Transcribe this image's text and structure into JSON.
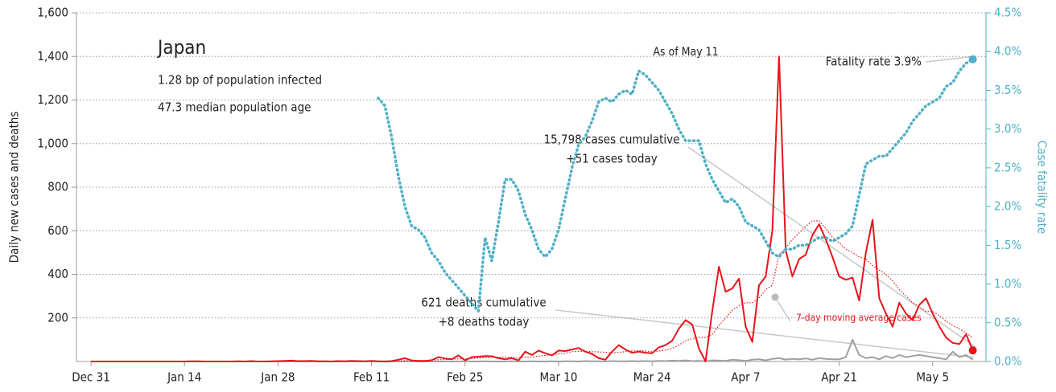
{
  "chart_data": {
    "type": "line",
    "title": "Japan",
    "subtitle": [
      "1.28 bp of population infected",
      "47.3 median population age"
    ],
    "ylabel": "Daily new cases and deaths",
    "y2label": "Case fatality rate",
    "annotations": {
      "as_of": "As of May 11",
      "fatality": "Fatality rate 3.9%",
      "cases_cum": "15,798 cases cumulative",
      "cases_today": "+51 cases today",
      "deaths_cum": "621 deaths cumulative",
      "deaths_today": "+8 deaths today"
    },
    "categories": [
      "Dec 31",
      null,
      null,
      null,
      null,
      null,
      null,
      null,
      null,
      null,
      null,
      null,
      null,
      null,
      "Jan 14",
      null,
      null,
      null,
      null,
      null,
      null,
      null,
      null,
      null,
      null,
      null,
      null,
      null,
      "Jan 28",
      null,
      null,
      null,
      null,
      null,
      null,
      null,
      null,
      null,
      null,
      null,
      null,
      null,
      "Feb 11",
      null,
      null,
      null,
      null,
      null,
      null,
      null,
      null,
      null,
      null,
      null,
      null,
      null,
      "Feb 25",
      null,
      null,
      null,
      null,
      null,
      null,
      null,
      null,
      null,
      null,
      null,
      null,
      null,
      "Mar 10",
      null,
      null,
      null,
      null,
      null,
      null,
      null,
      null,
      null,
      null,
      null,
      null,
      null,
      "Mar 24",
      null,
      null,
      null,
      null,
      null,
      null,
      null,
      null,
      null,
      null,
      null,
      null,
      null,
      "Apr 7",
      null,
      null,
      null,
      null,
      null,
      null,
      null,
      null,
      null,
      null,
      null,
      null,
      null,
      "Apr 21",
      null,
      null,
      null,
      null,
      null,
      null,
      null,
      null,
      null,
      null,
      null,
      null,
      null,
      "May 5",
      null,
      null,
      null,
      null,
      null,
      null
    ],
    "series": [
      {
        "color": "#e8141b",
        "values": [
          0,
          0,
          0,
          0,
          0,
          0,
          0,
          0,
          0,
          0,
          0,
          0,
          0,
          0,
          0,
          1,
          1,
          0,
          0,
          0,
          0,
          0,
          1,
          0,
          2,
          0,
          0,
          1,
          2,
          3,
          4,
          2,
          2,
          3,
          1,
          1,
          0,
          2,
          1,
          3,
          2,
          1,
          3,
          1,
          0,
          2,
          8,
          15,
          5,
          3,
          2,
          6,
          20,
          14,
          10,
          28,
          5,
          20,
          22,
          25,
          24,
          15,
          10,
          15,
          5,
          45,
          30,
          50,
          38,
          28,
          50,
          48,
          55,
          62,
          45,
          35,
          15,
          8,
          45,
          75,
          55,
          40,
          45,
          40,
          38,
          65,
          75,
          95,
          150,
          190,
          170,
          60,
          0,
          230,
          435,
          320,
          335,
          380,
          160,
          90,
          350,
          390,
          600,
          1400,
          510,
          390,
          470,
          490,
          580,
          630,
          560,
          480,
          390,
          375,
          385,
          280,
          500,
          650,
          290,
          220,
          160,
          270,
          220,
          190,
          260,
          290,
          220,
          160,
          110,
          85,
          80,
          125,
          51
        ]
      },
      {
        "name": "7-day moving average cases",
        "color": "#e8141b",
        "dash": true,
        "values": [
          0,
          0,
          0,
          0,
          0,
          0,
          0,
          0,
          0,
          0,
          0,
          0,
          0,
          0,
          0,
          0,
          0,
          0,
          0,
          0,
          0,
          0,
          0,
          0,
          0,
          0,
          0,
          1,
          1,
          1,
          2,
          2,
          2,
          2,
          2,
          2,
          2,
          2,
          2,
          2,
          2,
          2,
          2,
          2,
          2,
          2,
          3,
          4,
          5,
          5,
          5,
          6,
          8,
          9,
          10,
          12,
          12,
          14,
          16,
          18,
          20,
          20,
          20,
          19,
          17,
          19,
          20,
          24,
          28,
          30,
          35,
          38,
          45,
          47,
          46,
          45,
          44,
          42,
          40,
          42,
          45,
          48,
          50,
          48,
          45,
          48,
          52,
          60,
          75,
          95,
          105,
          110,
          110,
          125,
          165,
          200,
          235,
          255,
          270,
          270,
          290,
          330,
          350,
          490,
          520,
          560,
          590,
          620,
          645,
          645,
          610,
          570,
          545,
          515,
          500,
          480,
          470,
          440,
          420,
          400,
          370,
          330,
          300,
          270,
          250,
          230,
          230,
          210,
          185,
          165,
          150,
          130,
          110
        ]
      },
      {
        "color": "#a0a0a0",
        "values": [
          0,
          0,
          0,
          0,
          0,
          0,
          0,
          0,
          0,
          0,
          0,
          0,
          0,
          0,
          0,
          0,
          0,
          0,
          0,
          0,
          0,
          0,
          0,
          0,
          0,
          0,
          0,
          0,
          0,
          0,
          0,
          0,
          0,
          0,
          0,
          0,
          0,
          0,
          0,
          0,
          0,
          0,
          0,
          0,
          0,
          0,
          0,
          0,
          0,
          0,
          0,
          0,
          0,
          0,
          0,
          0,
          1,
          0,
          0,
          1,
          0,
          0,
          0,
          1,
          0,
          0,
          1,
          0,
          0,
          1,
          0,
          1,
          1,
          0,
          2,
          1,
          1,
          0,
          2,
          1,
          1,
          2,
          1,
          2,
          1,
          3,
          2,
          4,
          3,
          5,
          2,
          3,
          1,
          5,
          4,
          3,
          8,
          6,
          3,
          8,
          10,
          5,
          12,
          15,
          9,
          12,
          10,
          14,
          8,
          15,
          12,
          10,
          10,
          20,
          100,
          30,
          15,
          20,
          10,
          25,
          15,
          30,
          20,
          25,
          30,
          25,
          20,
          15,
          10,
          45,
          20,
          30,
          8
        ]
      },
      {
        "color": "#4fb0c6",
        "axis": "y2",
        "values": [
          null,
          null,
          null,
          null,
          null,
          null,
          null,
          null,
          null,
          null,
          null,
          null,
          null,
          null,
          null,
          null,
          null,
          null,
          null,
          null,
          null,
          null,
          null,
          null,
          null,
          null,
          null,
          null,
          null,
          null,
          null,
          null,
          null,
          null,
          null,
          null,
          null,
          null,
          null,
          null,
          null,
          null,
          null,
          3.4,
          3.3,
          2.9,
          2.4,
          2.0,
          1.75,
          1.7,
          1.6,
          1.4,
          1.3,
          1.15,
          1.05,
          0.95,
          0.85,
          0.75,
          0.65,
          1.6,
          1.3,
          1.8,
          2.35,
          2.35,
          2.2,
          1.9,
          1.7,
          1.45,
          1.35,
          1.45,
          1.7,
          2.1,
          2.5,
          2.8,
          2.9,
          3.1,
          3.35,
          3.4,
          3.35,
          3.45,
          3.5,
          3.45,
          3.75,
          3.7,
          3.6,
          3.5,
          3.35,
          3.2,
          3.0,
          2.85,
          2.85,
          2.85,
          2.55,
          2.35,
          2.2,
          2.05,
          2.1,
          2.0,
          1.8,
          1.75,
          1.7,
          1.55,
          1.4,
          1.35,
          1.45,
          1.45,
          1.5,
          1.5,
          1.55,
          1.6,
          1.6,
          1.55,
          1.6,
          1.65,
          1.75,
          2.15,
          2.55,
          2.6,
          2.65,
          2.65,
          2.75,
          2.85,
          2.95,
          3.1,
          3.2,
          3.3,
          3.35,
          3.4,
          3.55,
          3.6,
          3.75,
          3.85,
          3.9
        ]
      }
    ],
    "ylim": [
      0,
      1600
    ],
    "yticks": [
      200,
      400,
      600,
      800,
      {
        "value": 1000,
        "label": "1,000"
      },
      {
        "value": 1200,
        "label": "1,200"
      },
      {
        "value": 1400,
        "label": "1,400"
      },
      {
        "value": 1600,
        "label": "1,600"
      }
    ],
    "y2lim": [
      0,
      4.5
    ],
    "y2ticks": [
      {
        "value": 0,
        "label": "0.0%"
      },
      {
        "value": 0.5,
        "label": "0.5%"
      },
      {
        "value": 1,
        "label": "1.0%"
      },
      {
        "value": 1.5,
        "label": "1.5%"
      },
      {
        "value": 2,
        "label": "2.0%"
      },
      {
        "value": 2.5,
        "label": "2.5%"
      },
      {
        "value": 3,
        "label": "3.0%"
      },
      {
        "value": 3.5,
        "label": "3.5%"
      },
      {
        "value": 4,
        "label": "4.0%"
      },
      {
        "value": 4.5,
        "label": "4.5%"
      }
    ],
    "grid": true
  }
}
